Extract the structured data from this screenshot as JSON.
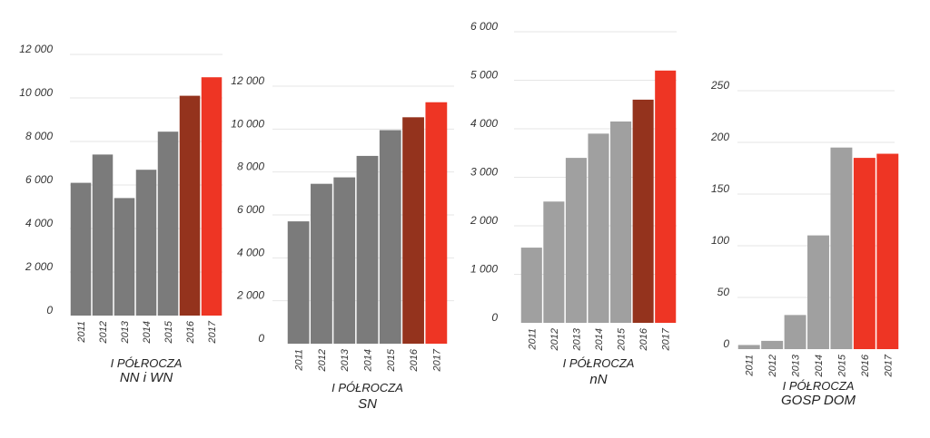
{
  "colors": {
    "bar_dark_gray": "#7b7b7b",
    "bar_light_gray": "#a0a0a0",
    "bar_dark_red": "#94331d",
    "bar_red": "#ee3524",
    "grid": "#e6e6e6"
  },
  "chart_data": [
    {
      "type": "bar",
      "categories": [
        "2011",
        "2012",
        "2013",
        "2014",
        "2015",
        "2016",
        "2017"
      ],
      "values": [
        6100,
        7400,
        5400,
        6700,
        8450,
        10100,
        10950
      ],
      "yticks": [
        "0",
        "2 000",
        "4 000",
        "6 000",
        "8 000",
        "10 000",
        "12 000"
      ],
      "ylim": [
        0,
        12000
      ],
      "caption_line1": "I PÓŁROCZA",
      "caption_line2": "NN i WN",
      "grid": true
    },
    {
      "type": "bar",
      "categories": [
        "2011",
        "2012",
        "2013",
        "2014",
        "2015",
        "2016",
        "2017"
      ],
      "values": [
        5700,
        7450,
        7750,
        8750,
        9950,
        10550,
        11250
      ],
      "yticks": [
        "0",
        "2 000",
        "4 000",
        "6 000",
        "8 000",
        "10 000",
        "12 000"
      ],
      "ylim": [
        0,
        12000
      ],
      "caption_line1": "I PÓŁROCZA",
      "caption_line2": "SN",
      "grid": true
    },
    {
      "type": "bar",
      "categories": [
        "2011",
        "2012",
        "2013",
        "2014",
        "2015",
        "2016",
        "2017"
      ],
      "values": [
        1550,
        2500,
        3400,
        3900,
        4150,
        4600,
        5200
      ],
      "yticks": [
        "0",
        "1 000",
        "2 000",
        "3 000",
        "4 000",
        "5 000",
        "6 000"
      ],
      "ylim": [
        0,
        6000
      ],
      "caption_line1": "I PÓŁROCZA",
      "caption_line2": "nN",
      "grid": true
    },
    {
      "type": "bar",
      "categories": [
        "2011",
        "2012",
        "2013",
        "2014",
        "2015",
        "2016",
        "2017"
      ],
      "values": [
        4,
        8,
        33,
        110,
        195,
        185,
        189
      ],
      "yticks": [
        "0",
        "50",
        "100",
        "150",
        "200",
        "250"
      ],
      "ylim": [
        0,
        250
      ],
      "caption_line1": "I PÓŁROCZA",
      "caption_line2": "GOSP DOM",
      "grid": true
    }
  ]
}
